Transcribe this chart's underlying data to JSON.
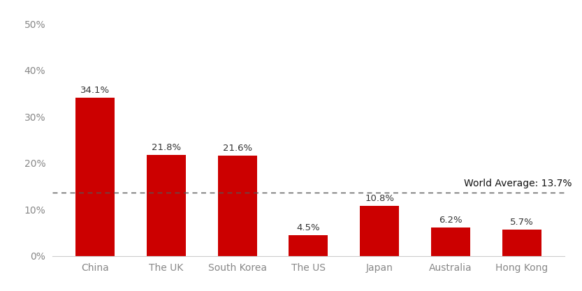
{
  "categories": [
    "China",
    "The UK",
    "South Korea",
    "The US",
    "Japan",
    "Australia",
    "Hong Kong"
  ],
  "values": [
    34.1,
    21.8,
    21.6,
    4.5,
    10.8,
    6.2,
    5.7
  ],
  "bar_color": "#cc0000",
  "world_average": 13.7,
  "world_average_label": "World Average: 13.7%",
  "ylim": [
    0,
    52
  ],
  "yticks": [
    0,
    10,
    20,
    30,
    40,
    50
  ],
  "ytick_labels": [
    "0%",
    "10%",
    "20%",
    "30%",
    "40%",
    "50%"
  ],
  "background_color": "#ffffff",
  "label_fontsize": 9.5,
  "tick_fontsize": 10,
  "avg_line_color": "#555555",
  "avg_label_fontsize": 10,
  "bar_width": 0.55
}
